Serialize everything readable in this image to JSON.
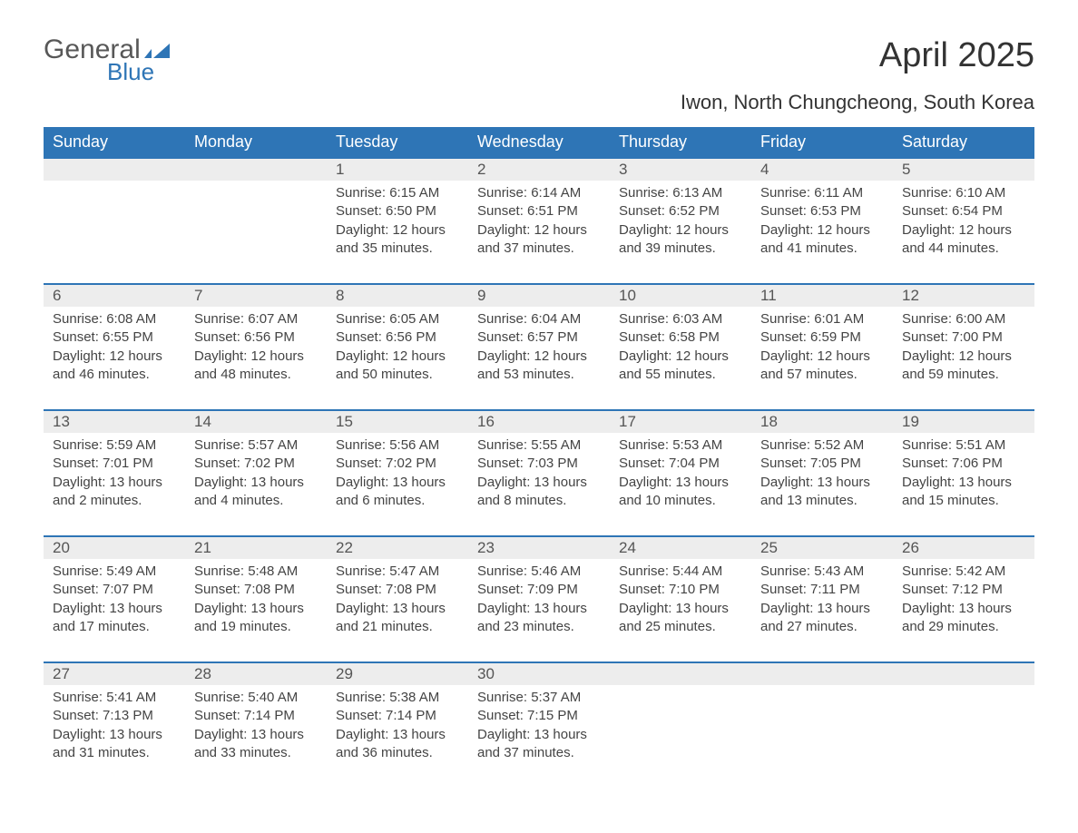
{
  "logo": {
    "word1": "General",
    "word2": "Blue",
    "flag_color": "#2e75b6"
  },
  "title": "April 2025",
  "subtitle": "Iwon, North Chungcheong, South Korea",
  "colors": {
    "header_bg": "#2e75b6",
    "header_text": "#ffffff",
    "daynum_bg": "#ededed",
    "row_border": "#2e75b6",
    "text": "#444444",
    "page_bg": "#ffffff"
  },
  "fonts": {
    "header_size": 18,
    "title_size": 38,
    "subtitle_size": 22,
    "cell_size": 15,
    "daynum_size": 17
  },
  "weekdays": [
    "Sunday",
    "Monday",
    "Tuesday",
    "Wednesday",
    "Thursday",
    "Friday",
    "Saturday"
  ],
  "weeks": [
    [
      null,
      null,
      {
        "d": "1",
        "sr": "Sunrise: 6:15 AM",
        "ss": "Sunset: 6:50 PM",
        "dl": "Daylight: 12 hours and 35 minutes."
      },
      {
        "d": "2",
        "sr": "Sunrise: 6:14 AM",
        "ss": "Sunset: 6:51 PM",
        "dl": "Daylight: 12 hours and 37 minutes."
      },
      {
        "d": "3",
        "sr": "Sunrise: 6:13 AM",
        "ss": "Sunset: 6:52 PM",
        "dl": "Daylight: 12 hours and 39 minutes."
      },
      {
        "d": "4",
        "sr": "Sunrise: 6:11 AM",
        "ss": "Sunset: 6:53 PM",
        "dl": "Daylight: 12 hours and 41 minutes."
      },
      {
        "d": "5",
        "sr": "Sunrise: 6:10 AM",
        "ss": "Sunset: 6:54 PM",
        "dl": "Daylight: 12 hours and 44 minutes."
      }
    ],
    [
      {
        "d": "6",
        "sr": "Sunrise: 6:08 AM",
        "ss": "Sunset: 6:55 PM",
        "dl": "Daylight: 12 hours and 46 minutes."
      },
      {
        "d": "7",
        "sr": "Sunrise: 6:07 AM",
        "ss": "Sunset: 6:56 PM",
        "dl": "Daylight: 12 hours and 48 minutes."
      },
      {
        "d": "8",
        "sr": "Sunrise: 6:05 AM",
        "ss": "Sunset: 6:56 PM",
        "dl": "Daylight: 12 hours and 50 minutes."
      },
      {
        "d": "9",
        "sr": "Sunrise: 6:04 AM",
        "ss": "Sunset: 6:57 PM",
        "dl": "Daylight: 12 hours and 53 minutes."
      },
      {
        "d": "10",
        "sr": "Sunrise: 6:03 AM",
        "ss": "Sunset: 6:58 PM",
        "dl": "Daylight: 12 hours and 55 minutes."
      },
      {
        "d": "11",
        "sr": "Sunrise: 6:01 AM",
        "ss": "Sunset: 6:59 PM",
        "dl": "Daylight: 12 hours and 57 minutes."
      },
      {
        "d": "12",
        "sr": "Sunrise: 6:00 AM",
        "ss": "Sunset: 7:00 PM",
        "dl": "Daylight: 12 hours and 59 minutes."
      }
    ],
    [
      {
        "d": "13",
        "sr": "Sunrise: 5:59 AM",
        "ss": "Sunset: 7:01 PM",
        "dl": "Daylight: 13 hours and 2 minutes."
      },
      {
        "d": "14",
        "sr": "Sunrise: 5:57 AM",
        "ss": "Sunset: 7:02 PM",
        "dl": "Daylight: 13 hours and 4 minutes."
      },
      {
        "d": "15",
        "sr": "Sunrise: 5:56 AM",
        "ss": "Sunset: 7:02 PM",
        "dl": "Daylight: 13 hours and 6 minutes."
      },
      {
        "d": "16",
        "sr": "Sunrise: 5:55 AM",
        "ss": "Sunset: 7:03 PM",
        "dl": "Daylight: 13 hours and 8 minutes."
      },
      {
        "d": "17",
        "sr": "Sunrise: 5:53 AM",
        "ss": "Sunset: 7:04 PM",
        "dl": "Daylight: 13 hours and 10 minutes."
      },
      {
        "d": "18",
        "sr": "Sunrise: 5:52 AM",
        "ss": "Sunset: 7:05 PM",
        "dl": "Daylight: 13 hours and 13 minutes."
      },
      {
        "d": "19",
        "sr": "Sunrise: 5:51 AM",
        "ss": "Sunset: 7:06 PM",
        "dl": "Daylight: 13 hours and 15 minutes."
      }
    ],
    [
      {
        "d": "20",
        "sr": "Sunrise: 5:49 AM",
        "ss": "Sunset: 7:07 PM",
        "dl": "Daylight: 13 hours and 17 minutes."
      },
      {
        "d": "21",
        "sr": "Sunrise: 5:48 AM",
        "ss": "Sunset: 7:08 PM",
        "dl": "Daylight: 13 hours and 19 minutes."
      },
      {
        "d": "22",
        "sr": "Sunrise: 5:47 AM",
        "ss": "Sunset: 7:08 PM",
        "dl": "Daylight: 13 hours and 21 minutes."
      },
      {
        "d": "23",
        "sr": "Sunrise: 5:46 AM",
        "ss": "Sunset: 7:09 PM",
        "dl": "Daylight: 13 hours and 23 minutes."
      },
      {
        "d": "24",
        "sr": "Sunrise: 5:44 AM",
        "ss": "Sunset: 7:10 PM",
        "dl": "Daylight: 13 hours and 25 minutes."
      },
      {
        "d": "25",
        "sr": "Sunrise: 5:43 AM",
        "ss": "Sunset: 7:11 PM",
        "dl": "Daylight: 13 hours and 27 minutes."
      },
      {
        "d": "26",
        "sr": "Sunrise: 5:42 AM",
        "ss": "Sunset: 7:12 PM",
        "dl": "Daylight: 13 hours and 29 minutes."
      }
    ],
    [
      {
        "d": "27",
        "sr": "Sunrise: 5:41 AM",
        "ss": "Sunset: 7:13 PM",
        "dl": "Daylight: 13 hours and 31 minutes."
      },
      {
        "d": "28",
        "sr": "Sunrise: 5:40 AM",
        "ss": "Sunset: 7:14 PM",
        "dl": "Daylight: 13 hours and 33 minutes."
      },
      {
        "d": "29",
        "sr": "Sunrise: 5:38 AM",
        "ss": "Sunset: 7:14 PM",
        "dl": "Daylight: 13 hours and 36 minutes."
      },
      {
        "d": "30",
        "sr": "Sunrise: 5:37 AM",
        "ss": "Sunset: 7:15 PM",
        "dl": "Daylight: 13 hours and 37 minutes."
      },
      null,
      null,
      null
    ]
  ]
}
